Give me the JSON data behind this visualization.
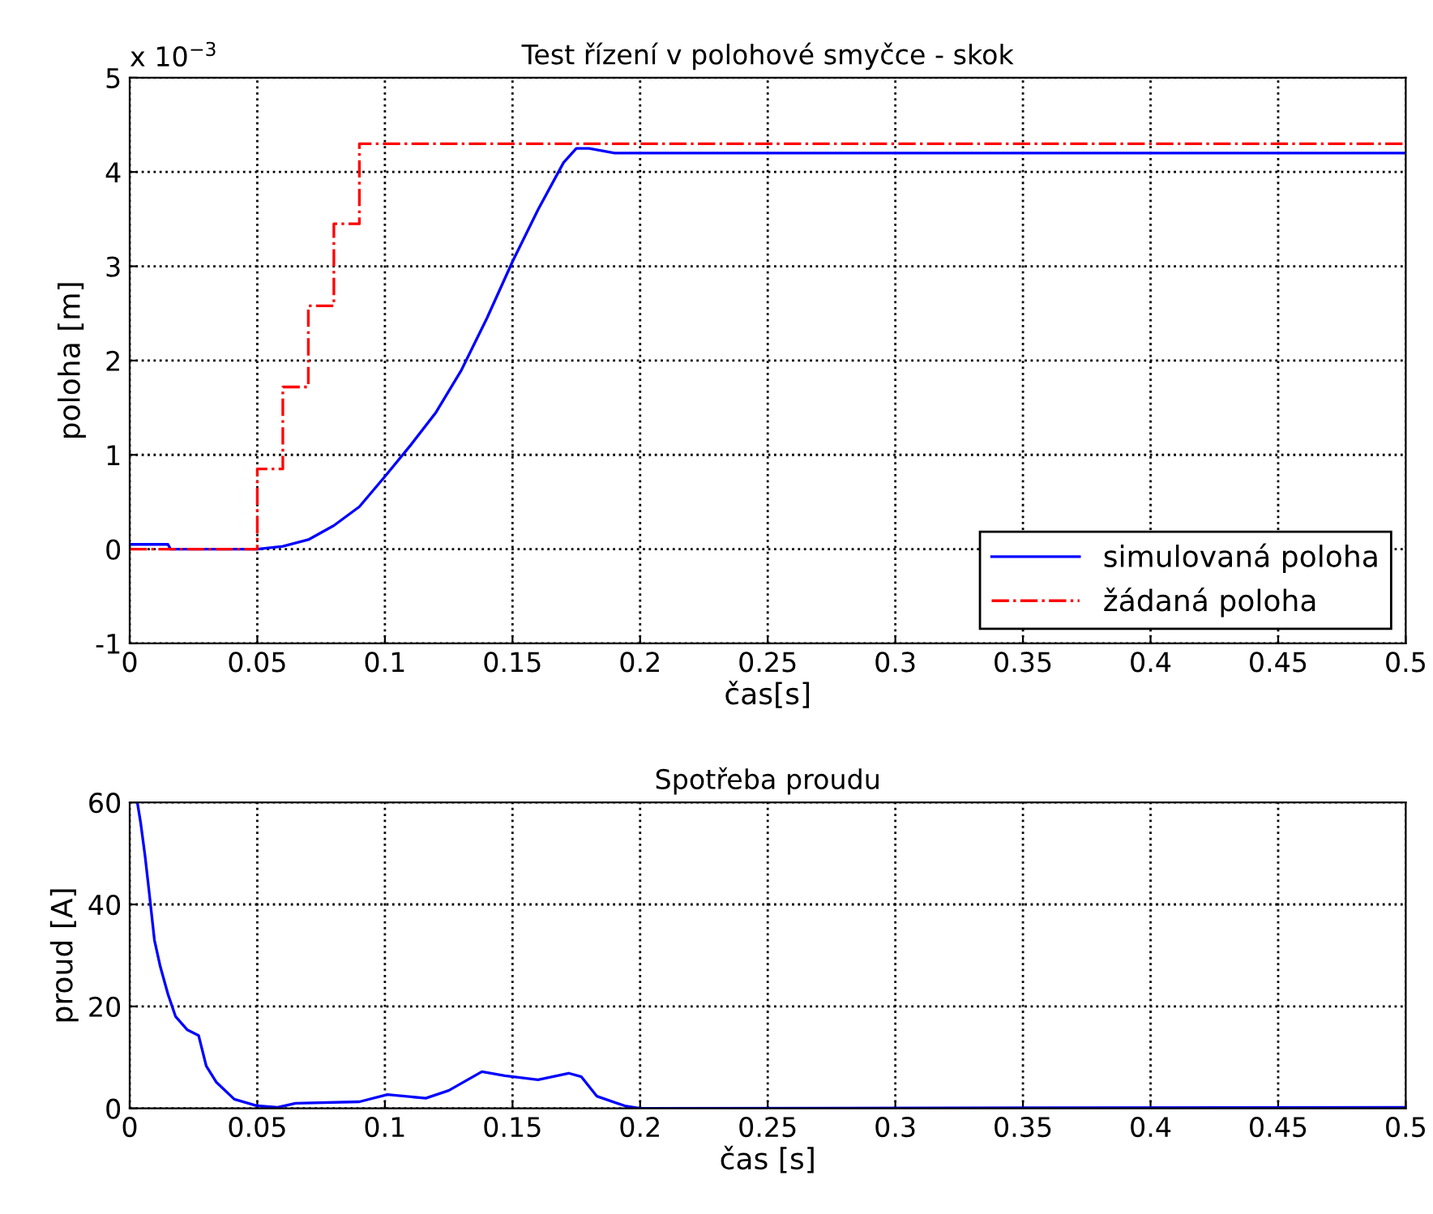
{
  "chart_data": [
    {
      "type": "line",
      "title": "Test řízení v polohové smyčce - skok",
      "xlabel": "čas[s]",
      "ylabel": "poloha [m]",
      "annotations": [
        "x 10$^{−3}$"
      ],
      "xlim": [
        0,
        0.5
      ],
      "xticks": [
        0,
        0.05,
        0.1,
        0.15,
        0.2,
        0.25,
        0.3,
        0.35,
        0.4,
        0.45,
        0.5
      ],
      "ylim": [
        -1,
        5
      ],
      "yticks": [
        -1,
        0,
        1,
        2,
        3,
        4,
        5
      ],
      "grid": true,
      "legend": "bottom right",
      "series": [
        {
          "name": "simulovaná poloha",
          "color": "#0000ff",
          "line_style": "solid",
          "x": [
            0,
            0.015,
            0.016,
            0.05,
            0.06,
            0.07,
            0.08,
            0.09,
            0.1,
            0.11,
            0.12,
            0.13,
            0.14,
            0.15,
            0.16,
            0.17,
            0.175,
            0.18,
            0.19,
            0.5
          ],
          "values": [
            0.05,
            0.05,
            0,
            0,
            0.03,
            0.1,
            0.25,
            0.45,
            0.77,
            1.1,
            1.45,
            1.9,
            2.45,
            3.05,
            3.6,
            4.1,
            4.25,
            4.25,
            4.2,
            4.2
          ]
        },
        {
          "name": "žádaná poloha",
          "color": "#ff0000",
          "type": "step",
          "line_style": "dashdot",
          "x": [
            0,
            0.05,
            0.06,
            0.07,
            0.08,
            0.09,
            0.5
          ],
          "values": [
            0,
            0.85,
            1.72,
            2.58,
            3.45,
            4.3,
            4.3
          ]
        }
      ]
    },
    {
      "type": "line",
      "title": "Spotřeba proudu",
      "xlabel": "čas [s]",
      "ylabel": "proud [A]",
      "xlim": [
        0,
        0.5
      ],
      "xticks": [
        0,
        0.05,
        0.1,
        0.15,
        0.2,
        0.25,
        0.3,
        0.35,
        0.4,
        0.45,
        0.5
      ],
      "ylim": [
        0,
        60
      ],
      "yticks": [
        0,
        20,
        40,
        60
      ],
      "grid": true,
      "series": [
        {
          "color": "#0000ff",
          "line_style": "solid",
          "x": [
            0.003,
            0.0043,
            0.006,
            0.0075,
            0.0097,
            0.012,
            0.015,
            0.018,
            0.0226,
            0.027,
            0.03,
            0.034,
            0.041,
            0.05,
            0.058,
            0.065,
            0.09,
            0.101,
            0.116,
            0.125,
            0.138,
            0.147,
            0.16,
            0.172,
            0.177,
            0.183,
            0.194,
            0.2,
            0.5
          ],
          "values": [
            60,
            56,
            49.6,
            43,
            33,
            27.8,
            22.4,
            18,
            15.4,
            14.3,
            8.3,
            5.1,
            1.8,
            0.5,
            0.2,
            1,
            1.3,
            2.7,
            2,
            3.5,
            7.2,
            6.4,
            5.6,
            6.9,
            6.2,
            2.4,
            0.5,
            0,
            0.2
          ]
        }
      ]
    }
  ]
}
